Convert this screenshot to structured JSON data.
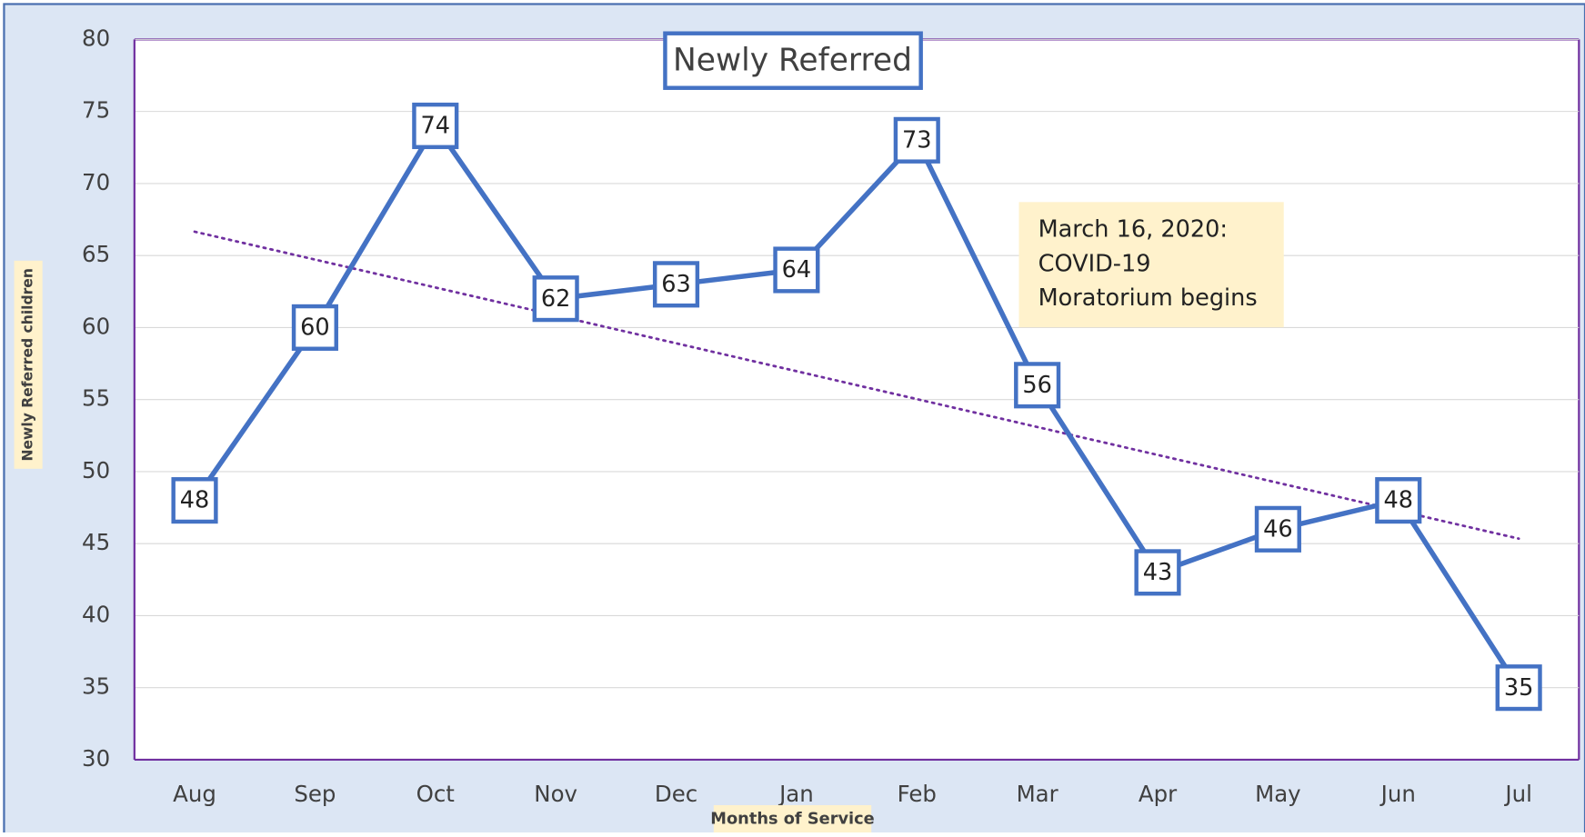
{
  "chart_data": {
    "type": "line",
    "title": "Newly Referred",
    "x_label": "Months of Service",
    "y_label": "Newly Referred children",
    "categories": [
      "Aug",
      "Sep",
      "Oct",
      "Nov",
      "Dec",
      "Jan",
      "Feb",
      "Mar",
      "Apr",
      "May",
      "Jun",
      "Jul"
    ],
    "series": [
      {
        "name": "Newly Referred",
        "color": "#4472c4",
        "values": [
          48,
          60,
          74,
          62,
          63,
          64,
          73,
          56,
          43,
          46,
          48,
          35
        ]
      }
    ],
    "ylim": [
      30,
      80
    ],
    "yticks": [
      30,
      35,
      40,
      45,
      50,
      55,
      60,
      65,
      70,
      75,
      80
    ],
    "grid": true,
    "trendline": "linear",
    "trendline_color": "#7030a0",
    "annotation": [
      "March 16, 2020:",
      "COVID-19",
      "Moratorium begins"
    ]
  }
}
